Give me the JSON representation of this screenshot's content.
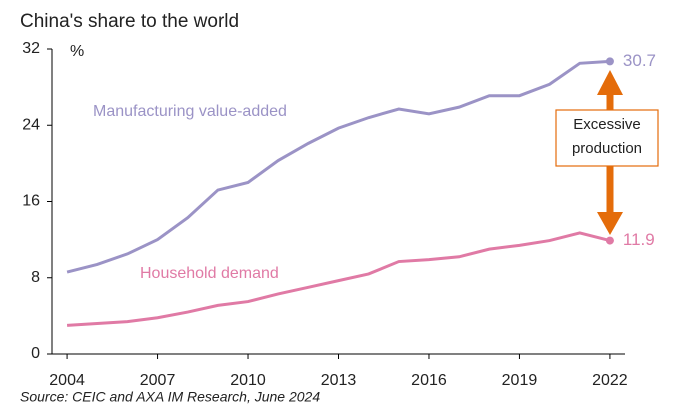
{
  "chart_data": {
    "type": "line",
    "title": "China's share to the world",
    "y_unit": "%",
    "x": [
      2004,
      2005,
      2006,
      2007,
      2008,
      2009,
      2010,
      2011,
      2012,
      2013,
      2014,
      2015,
      2016,
      2017,
      2018,
      2019,
      2020,
      2021,
      2022
    ],
    "series": [
      {
        "name": "Manufacturing value-added",
        "color": "#9b93c6",
        "values": [
          8.6,
          9.4,
          10.5,
          12.0,
          14.3,
          17.2,
          18.0,
          20.3,
          22.1,
          23.7,
          24.8,
          25.7,
          25.2,
          25.9,
          27.1,
          27.1,
          28.3,
          30.5,
          30.7
        ]
      },
      {
        "name": "Household demand",
        "color": "#e07aa5",
        "values": [
          3.0,
          3.2,
          3.4,
          3.8,
          4.4,
          5.1,
          5.5,
          6.3,
          7.0,
          7.7,
          8.4,
          9.7,
          9.9,
          10.2,
          11.0,
          11.4,
          11.9,
          12.7,
          11.9
        ]
      }
    ],
    "xlim": [
      2003.5,
      2022.5
    ],
    "xticks": [
      2004,
      2007,
      2010,
      2013,
      2016,
      2019,
      2022
    ],
    "ylim": [
      0,
      32
    ],
    "yticks": [
      0,
      8,
      16,
      24,
      32
    ],
    "annotation": [
      "Excessive",
      "production"
    ],
    "source": "Source: CEIC and AXA IM Research, June 2024"
  }
}
